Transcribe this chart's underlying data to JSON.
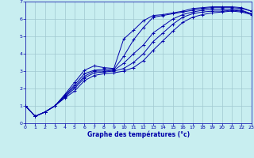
{
  "title": "",
  "xlabel": "Graphe des températures (°c)",
  "ylabel": "",
  "bg_color": "#c8eef0",
  "line_color": "#0000aa",
  "grid_color": "#a0c8d0",
  "xlim": [
    0,
    23
  ],
  "ylim": [
    0,
    7
  ],
  "xticks": [
    0,
    1,
    2,
    3,
    4,
    5,
    6,
    7,
    8,
    9,
    10,
    11,
    12,
    13,
    14,
    15,
    16,
    17,
    18,
    19,
    20,
    21,
    22,
    23
  ],
  "yticks": [
    0,
    1,
    2,
    3,
    4,
    5,
    6,
    7
  ],
  "lines": [
    [
      1.0,
      0.4,
      0.65,
      1.0,
      1.65,
      2.35,
      3.05,
      3.3,
      3.2,
      3.15,
      4.85,
      5.35,
      5.9,
      6.2,
      6.25,
      6.35,
      6.45,
      6.6,
      6.65,
      6.7,
      6.7,
      6.7,
      6.65,
      6.45
    ],
    [
      1.0,
      0.4,
      0.65,
      1.0,
      1.6,
      2.2,
      2.85,
      3.05,
      3.1,
      3.1,
      3.85,
      4.8,
      5.5,
      6.1,
      6.2,
      6.3,
      6.4,
      6.5,
      6.6,
      6.65,
      6.65,
      6.65,
      6.6,
      6.45
    ],
    [
      1.0,
      0.4,
      0.65,
      1.0,
      1.55,
      2.1,
      2.7,
      3.0,
      3.0,
      3.05,
      3.45,
      4.0,
      4.5,
      5.2,
      5.6,
      6.0,
      6.25,
      6.4,
      6.5,
      6.55,
      6.55,
      6.55,
      6.5,
      6.3
    ],
    [
      1.0,
      0.4,
      0.65,
      1.0,
      1.5,
      2.0,
      2.6,
      2.9,
      2.95,
      3.0,
      3.15,
      3.5,
      4.0,
      4.7,
      5.2,
      5.7,
      6.1,
      6.3,
      6.4,
      6.45,
      6.45,
      6.5,
      6.45,
      6.3
    ],
    [
      1.0,
      0.4,
      0.65,
      1.0,
      1.45,
      1.85,
      2.45,
      2.75,
      2.85,
      2.9,
      3.0,
      3.2,
      3.6,
      4.2,
      4.75,
      5.3,
      5.8,
      6.1,
      6.25,
      6.35,
      6.4,
      6.45,
      6.4,
      6.25
    ]
  ]
}
